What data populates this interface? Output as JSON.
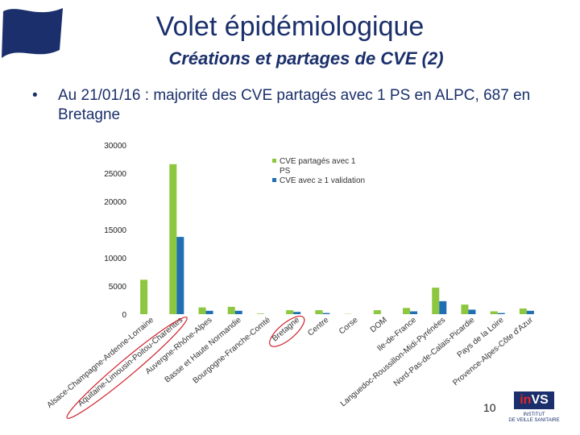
{
  "title": "Volet épidémiologique",
  "subtitle": "Créations et partages de CVE (2)",
  "bullet": {
    "marker": "•",
    "text": "Au 21/01/16 : majorité des CVE partagés avec 1 PS en ALPC, 687 en Bretagne"
  },
  "page_number": "10",
  "logo": {
    "prefix": "in",
    "suffix": "VS",
    "line1": "INSTITUT",
    "line2": "DE VEILLE SANITAIRE"
  },
  "colors": {
    "title": "#1a2f6b",
    "series1": "#8dc63f",
    "series2": "#1f6fb2",
    "annotation": "#d0202a"
  },
  "chart_data": {
    "type": "bar",
    "title": "",
    "xlabel": "",
    "ylabel": "",
    "ylim": [
      0,
      30000
    ],
    "yticks": [
      0,
      5000,
      10000,
      15000,
      20000,
      25000,
      30000
    ],
    "legend_position": "top-right",
    "categories": [
      "Alsace-Champagne-Ardenne-Lorraine",
      "Aquitaine-Limousin-Poitou-Charentes",
      "Auvergne-Rhône-Alpes",
      "Basse et Haute Normandie",
      "Bourgogne-Franche-Comté",
      "Bretagne",
      "Centre",
      "Corse",
      "DOM",
      "Ile-de-France",
      "Languedoc-Roussillon-Midi-Pyrénées",
      "Nord-Pas-de-Calais-Picardie",
      "Pays de la Loire",
      "Provence-Alpes-Côte d'Azur"
    ],
    "series": [
      {
        "name": "CVE partagés avec 1 PS",
        "values": [
          6100,
          26600,
          1200,
          1300,
          100,
          700,
          700,
          50,
          700,
          1100,
          4700,
          1700,
          500,
          1000
        ]
      },
      {
        "name": "CVE avec ≥ 1 validation",
        "values": [
          0,
          13700,
          600,
          600,
          0,
          400,
          200,
          0,
          0,
          500,
          2300,
          800,
          200,
          600
        ]
      }
    ],
    "annotations": [
      "Aquitaine-Limousin-Poitou-Charentes",
      "Bretagne"
    ]
  }
}
